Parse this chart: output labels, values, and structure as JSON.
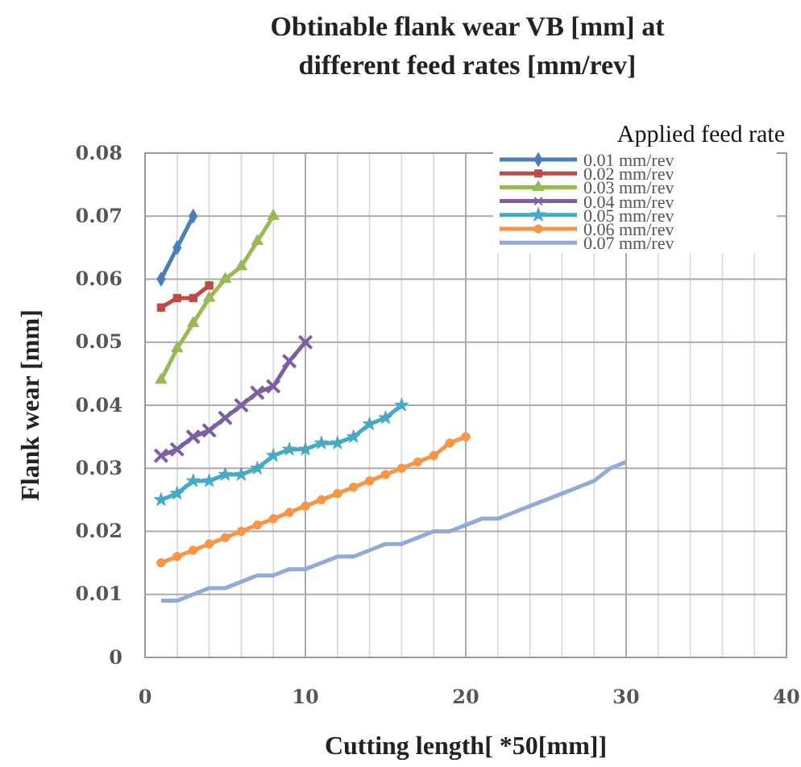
{
  "chart_data": {
    "type": "line",
    "title": "Obtinable flank wear VB [mm] at different feed rates [mm/rev]",
    "xlabel": "Cutting length[ *50[mm]]",
    "ylabel": "Flank wear [mm]",
    "legend_title": "Applied feed rate",
    "legend": "top right",
    "grid": true,
    "xlim": [
      0,
      40
    ],
    "xticks": [
      0,
      10,
      20,
      30,
      40
    ],
    "ylim": [
      0,
      0.08
    ],
    "yticks": [
      0,
      0.01,
      0.02,
      0.03,
      0.04,
      0.05,
      0.06,
      0.07,
      0.08
    ],
    "series": [
      {
        "name": "0.01 mm/rev",
        "color": "#4a7ebb",
        "marker": "diamond",
        "x": [
          1,
          2,
          3
        ],
        "values": [
          0.06,
          0.065,
          0.07
        ]
      },
      {
        "name": "0.02 mm/rev",
        "color": "#be4b48",
        "marker": "square",
        "x": [
          1,
          2,
          3,
          4
        ],
        "values": [
          0.0555,
          0.057,
          0.057,
          0.059
        ]
      },
      {
        "name": "0.03 mm/rev",
        "color": "#98b954",
        "marker": "triangle",
        "x": [
          1,
          2,
          3,
          4,
          5,
          6,
          7,
          8
        ],
        "values": [
          0.044,
          0.049,
          0.053,
          0.057,
          0.06,
          0.062,
          0.066,
          0.07
        ]
      },
      {
        "name": "0.04 mm/rev",
        "color": "#7d60a0",
        "marker": "cross",
        "x": [
          1,
          2,
          3,
          4,
          5,
          6,
          7,
          8,
          9,
          10
        ],
        "values": [
          0.032,
          0.033,
          0.035,
          0.036,
          0.038,
          0.04,
          0.042,
          0.043,
          0.047,
          0.05
        ]
      },
      {
        "name": "0.05 mm/rev",
        "color": "#46aac5",
        "marker": "star",
        "x": [
          1,
          2,
          3,
          4,
          5,
          6,
          7,
          8,
          9,
          10,
          11,
          12,
          13,
          14,
          15,
          16
        ],
        "values": [
          0.025,
          0.026,
          0.028,
          0.028,
          0.029,
          0.029,
          0.03,
          0.032,
          0.033,
          0.033,
          0.034,
          0.034,
          0.035,
          0.037,
          0.038,
          0.04
        ]
      },
      {
        "name": "0.06 mm/rev",
        "color": "#f79646",
        "marker": "circle",
        "x": [
          1,
          2,
          3,
          4,
          5,
          6,
          7,
          8,
          9,
          10,
          11,
          12,
          13,
          14,
          15,
          16,
          17,
          18,
          19,
          20
        ],
        "values": [
          0.015,
          0.016,
          0.017,
          0.018,
          0.019,
          0.02,
          0.021,
          0.022,
          0.023,
          0.024,
          0.025,
          0.026,
          0.027,
          0.028,
          0.029,
          0.03,
          0.031,
          0.032,
          0.034,
          0.035
        ]
      },
      {
        "name": "0.07 mm/rev",
        "color": "#93a9d8",
        "marker": "none",
        "x": [
          1,
          2,
          3,
          4,
          5,
          6,
          7,
          8,
          9,
          10,
          11,
          12,
          13,
          14,
          15,
          16,
          17,
          18,
          19,
          20,
          21,
          22,
          23,
          24,
          25,
          26,
          27,
          28,
          29,
          30
        ],
        "values": [
          0.009,
          0.009,
          0.01,
          0.011,
          0.011,
          0.012,
          0.013,
          0.013,
          0.014,
          0.014,
          0.015,
          0.016,
          0.016,
          0.017,
          0.018,
          0.018,
          0.019,
          0.02,
          0.02,
          0.021,
          0.022,
          0.022,
          0.023,
          0.024,
          0.025,
          0.026,
          0.027,
          0.028,
          0.03,
          0.031
        ]
      }
    ]
  }
}
